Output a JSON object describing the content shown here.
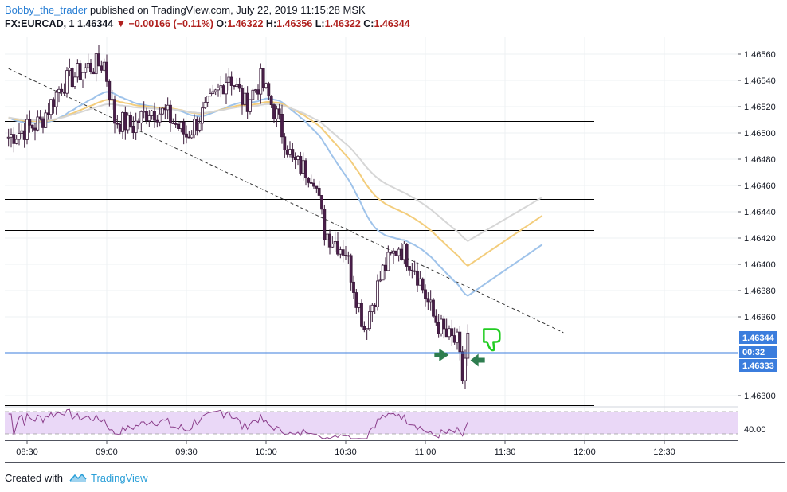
{
  "header": {
    "author": "Bobby_the_trader",
    "published_text": "published on TradingView.com, July 22, 2019 11:15:28 MSK"
  },
  "ohlc": {
    "symbol": "FX:EURCAD, 1",
    "last": "1.46344",
    "change": "−0.00166 (−0.11%)",
    "o_label": "O:",
    "o": "1.46322",
    "h_label": "H:",
    "h": "1.46356",
    "l_label": "L:",
    "l": "1.46322",
    "c_label": "C:",
    "c": "1.46344"
  },
  "footer": {
    "created_with": "Created with",
    "brand": "TradingView"
  },
  "colors": {
    "up_candle": "#ffffff",
    "down_candle": "#4a1e4a",
    "wick": "#3a1a3a",
    "ma_blue": "#9fc3ea",
    "ma_orange": "#f3cd7c",
    "ma_grey": "#d6d6d6",
    "hline": "#000000",
    "current_line": "#3b7ddd",
    "rsi_line": "#8a3d8a",
    "rsi_band": "#ead8f7",
    "price_tag_blue": "#3b7ddd",
    "arrow_green": "#2e7d4f",
    "thumb_green": "#22cc22"
  },
  "chart_data": {
    "type": "candlestick",
    "symbol": "FX:EURCAD",
    "interval": "1",
    "y_axis": {
      "ticks": [
        "1.46560",
        "1.46540",
        "1.46520",
        "1.46500",
        "1.46480",
        "1.46460",
        "1.46440",
        "1.46420",
        "1.46400",
        "1.46380",
        "1.46360",
        "1.46300"
      ],
      "ylim": [
        1.4629,
        1.4657
      ]
    },
    "price_tags": [
      {
        "label": "1.46344",
        "price": 1.46344
      },
      {
        "label": "00:32",
        "price": 1.46338
      },
      {
        "label": "1.46333",
        "price": 1.46333
      }
    ],
    "x_axis": {
      "ticks": [
        "08:30",
        "09:00",
        "09:30",
        "10:00",
        "10:30",
        "11:00",
        "11:30",
        "12:00",
        "12:30"
      ]
    },
    "horizontal_levels": [
      1.46553,
      1.46509,
      1.46475,
      1.4645,
      1.46426,
      1.46347,
      1.46293
    ],
    "current_price": 1.46333,
    "trendline": {
      "from": [
        "08:23",
        1.46549
      ],
      "to": [
        "11:52",
        1.46348
      ]
    },
    "candles_close_sampled": [
      [
        "08:23",
        1.46497
      ],
      [
        "08:35",
        1.46508
      ],
      [
        "08:43",
        1.46537
      ],
      [
        "08:53",
        1.4655
      ],
      [
        "08:59",
        1.46553
      ],
      [
        "09:03",
        1.4651
      ],
      [
        "09:10",
        1.46505
      ],
      [
        "09:16",
        1.46518
      ],
      [
        "09:22",
        1.46515
      ],
      [
        "09:30",
        1.46498
      ],
      [
        "09:40",
        1.46525
      ],
      [
        "09:46",
        1.46545
      ],
      [
        "09:52",
        1.46522
      ],
      [
        "09:58",
        1.4654
      ],
      [
        "10:04",
        1.46513
      ],
      [
        "10:10",
        1.46478
      ],
      [
        "10:18",
        1.46468
      ],
      [
        "10:22",
        1.46425
      ],
      [
        "10:30",
        1.4641
      ],
      [
        "10:34",
        1.46376
      ],
      [
        "10:37",
        1.46352
      ],
      [
        "10:44",
        1.46395
      ],
      [
        "10:50",
        1.46414
      ],
      [
        "10:56",
        1.46398
      ],
      [
        "11:03",
        1.4636
      ],
      [
        "11:08",
        1.46345
      ],
      [
        "11:12",
        1.4634
      ],
      [
        "11:14",
        1.46313
      ],
      [
        "11:16",
        1.46344
      ]
    ],
    "moving_averages": [
      {
        "color": "blue",
        "last_time": "11:44",
        "last_value": 1.46415
      },
      {
        "color": "orange",
        "last_time": "11:44",
        "last_value": 1.46437
      },
      {
        "color": "grey",
        "last_time": "11:44",
        "last_value": 1.46451
      }
    ],
    "rsi": {
      "label": "40.00",
      "levels": [
        60,
        40
      ]
    }
  }
}
